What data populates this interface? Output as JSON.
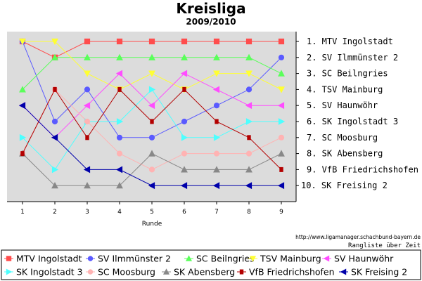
{
  "chart_data": {
    "type": "line",
    "title": "Kreisliga",
    "subtitle": "2009/2010",
    "xlabel": "Runde",
    "ylabel": "",
    "x": [
      1,
      2,
      3,
      4,
      5,
      6,
      7,
      8,
      9
    ],
    "ylim": [
      1,
      10
    ],
    "y_inverted": true,
    "grid": false,
    "legend_position": "bottom",
    "source_text": "http://www.ligamanager.schachbund-bayern.de",
    "footer_text": "Rangliste über Zeit",
    "right_labels": [
      "1. MTV Ingolstadt",
      "2. SV Ilmmünster 2",
      "3. SC Beilngries",
      "4. TSV Mainburg",
      "5. SV Haunwöhr",
      "6. SK Ingolstadt 3",
      "7. SC Moosburg",
      "8. SK Abensberg",
      "9. VfB Friedrichshofen",
      "10. SK Freising 2"
    ],
    "series": [
      {
        "name": "MTV Ingolstadt",
        "color": "#ff4d4d",
        "marker": "square",
        "values": [
          1,
          2,
          1,
          1,
          1,
          1,
          1,
          1,
          1
        ]
      },
      {
        "name": "SV Ilmmünster 2",
        "color": "#5a5aff",
        "marker": "circle",
        "values": [
          1,
          6,
          4,
          7,
          7,
          6,
          5,
          4,
          2
        ]
      },
      {
        "name": "SC Beilngries",
        "color": "#5aff5a",
        "marker": "triangle-up",
        "values": [
          4,
          2,
          2,
          2,
          2,
          2,
          2,
          2,
          3
        ]
      },
      {
        "name": "TSV Mainburg",
        "color": "#ffff33",
        "marker": "triangle-down",
        "values": [
          1,
          1,
          3,
          4,
          3,
          4,
          3,
          3,
          4
        ]
      },
      {
        "name": "SV Haunwöhr",
        "color": "#ff4dff",
        "marker": "triangle-left",
        "values": [
          5,
          7,
          5,
          3,
          5,
          3,
          4,
          5,
          5
        ]
      },
      {
        "name": "SK Ingolstadt 3",
        "color": "#4dffff",
        "marker": "triangle-right",
        "values": [
          7,
          9,
          6,
          6,
          4,
          7,
          7,
          6,
          6
        ]
      },
      {
        "name": "SC Moosburg",
        "color": "#ffb3b3",
        "marker": "circle",
        "values": [
          8,
          4,
          6,
          8,
          9,
          8,
          8,
          8,
          7
        ]
      },
      {
        "name": "SK Abensberg",
        "color": "#888888",
        "marker": "triangle-up",
        "values": [
          8,
          10,
          10,
          10,
          8,
          9,
          9,
          9,
          8
        ]
      },
      {
        "name": "VfB Friedrichshofen",
        "color": "#b30000",
        "marker": "square-small",
        "values": [
          8,
          4,
          7,
          4,
          6,
          4,
          6,
          7,
          9
        ]
      },
      {
        "name": "SK Freising 2",
        "color": "#0000aa",
        "marker": "triangle-left",
        "values": [
          5,
          7,
          9,
          9,
          10,
          10,
          10,
          10,
          10
        ]
      }
    ]
  }
}
